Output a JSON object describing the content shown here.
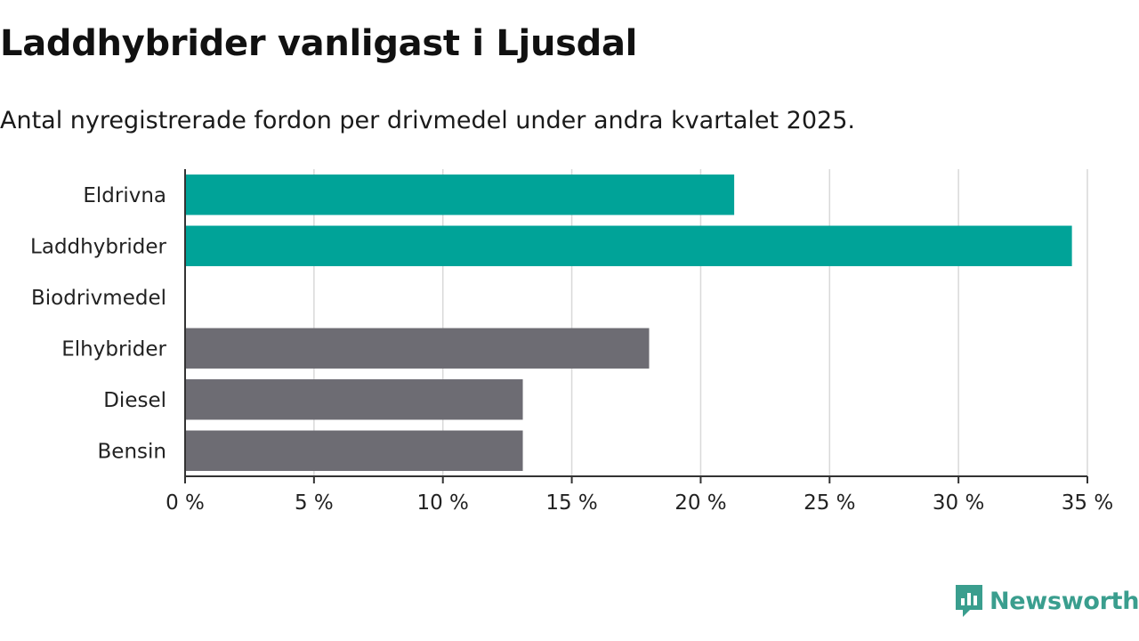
{
  "title": "Laddhybrider vanligast i Ljusdal",
  "subtitle": "Antal nyregistrerade fordon per drivmedel under andra kvartalet 2025.",
  "brand": {
    "name": "Newsworthy",
    "color": "#3a9e8e",
    "icon": "newsworthy-logo-icon"
  },
  "chart_data": {
    "type": "bar",
    "orientation": "horizontal",
    "categories": [
      "Eldrivna",
      "Laddhybrider",
      "Biodrivmedel",
      "Elhybrider",
      "Diesel",
      "Bensin"
    ],
    "values": [
      21.3,
      34.4,
      0,
      18.0,
      13.1,
      13.1
    ],
    "colors": [
      "#00a398",
      "#00a398",
      "#00a398",
      "#6d6c73",
      "#6d6c73",
      "#6d6c73"
    ],
    "xlim": [
      0,
      35
    ],
    "xticks": [
      0,
      5,
      10,
      15,
      20,
      25,
      30,
      35
    ],
    "xtick_labels": [
      "0 %",
      "5 %",
      "10 %",
      "15 %",
      "20 %",
      "25 %",
      "30 %",
      "35 %"
    ],
    "grid": true,
    "xlabel": "",
    "ylabel": ""
  }
}
